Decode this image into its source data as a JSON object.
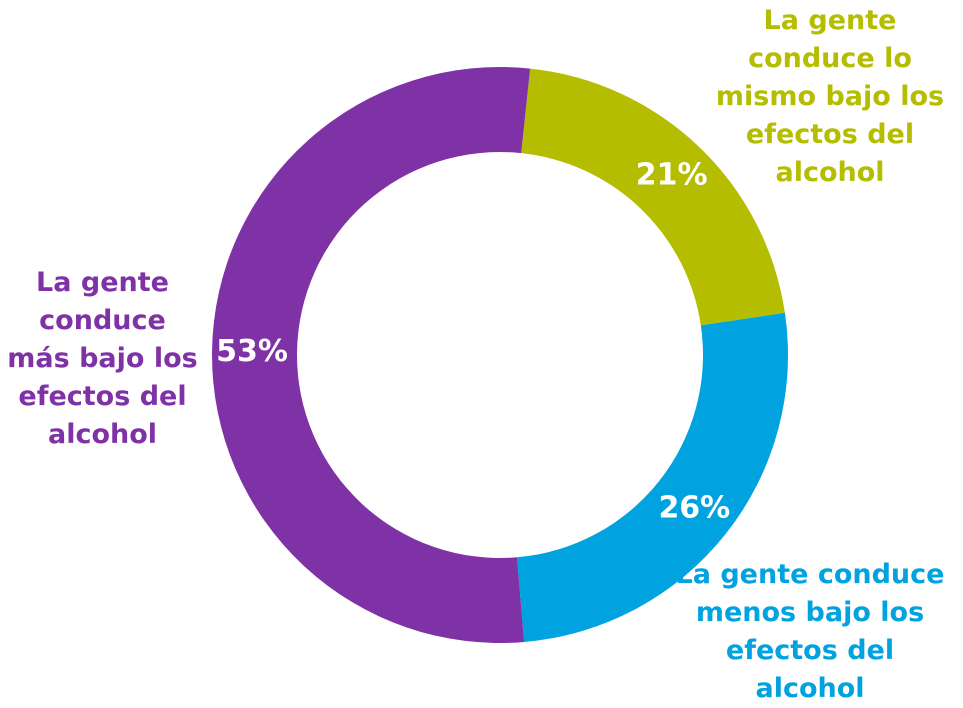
{
  "chart_data": {
    "type": "donut",
    "categories": [
      "La gente conduce lo mismo bajo los efectos del alcohol",
      "La gente conduce menos bajo los efectos del alcohol",
      "La gente conduce más bajo los efectos del alcohol"
    ],
    "values": [
      21,
      26,
      53
    ],
    "value_labels": [
      "21%",
      "26%",
      "53%"
    ],
    "colors": [
      "#b5bd00",
      "#00a3e0",
      "#7f31a6"
    ]
  }
}
